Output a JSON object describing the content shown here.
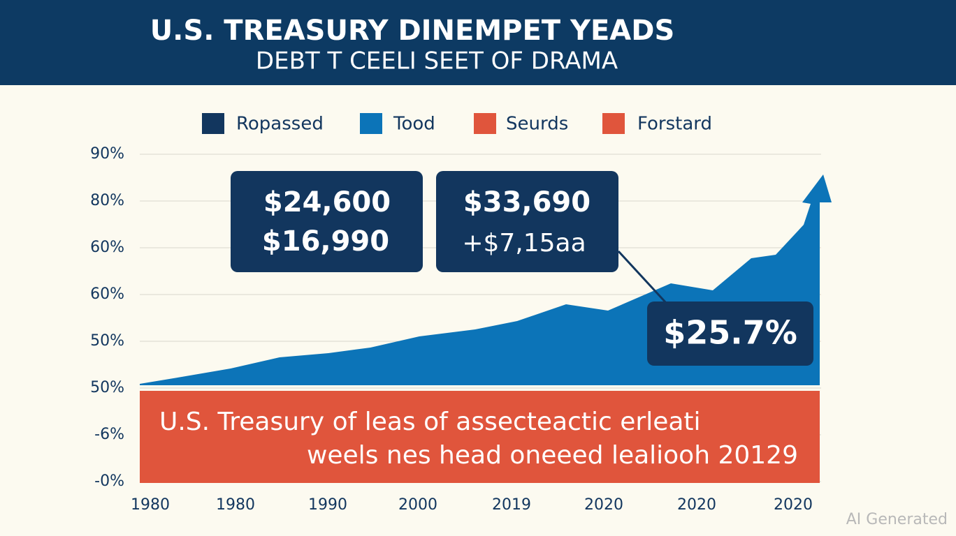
{
  "header": {
    "title": "U.S. TREASURY DINEMPET YEADS",
    "subtitle": "DEBT T CEELI SEET OF DRAMA"
  },
  "legend": [
    "Ropassed",
    "Tood",
    "Seurds",
    "Forstard"
  ],
  "y_axis_labels": [
    "90%",
    "80%",
    "60%",
    "60%",
    "50%",
    "50%",
    "-6%",
    "-0%"
  ],
  "x_axis_labels": [
    "1980",
    "1980",
    "1990",
    "2000",
    "2019",
    "2020",
    "2020",
    "2020"
  ],
  "callouts": [
    {
      "lines": [
        "$24,600",
        "$16,990"
      ]
    },
    {
      "lines": [
        "$33,690",
        "+$7,15aa"
      ]
    },
    {
      "lines": [
        "$25.7%"
      ]
    }
  ],
  "banner": {
    "lines": [
      "U.S. Treasury of leas of assecteactic erleati",
      "weels nes head oneeed lealiooh 20129"
    ]
  },
  "watermark": "AI Generated"
}
